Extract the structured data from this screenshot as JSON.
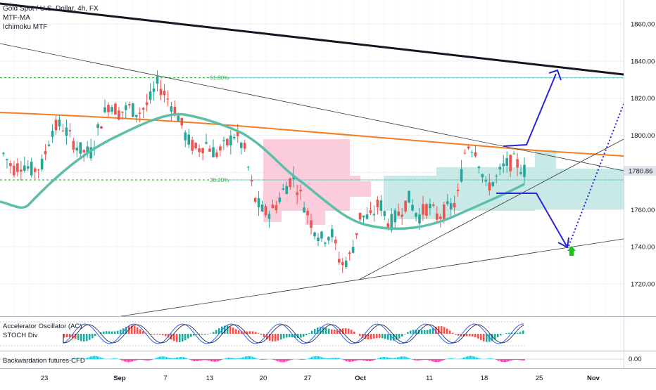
{
  "header": {
    "symbol_line": "Gold Spot / U.S. Dollar, 4h, FX",
    "indicators": [
      "MTF-MA",
      "Ichimoku MTF"
    ]
  },
  "panes": {
    "accelerator_label": "Accelerator Oscillator (AC)",
    "stoch_label": "STOCH Div",
    "backwardation_label": "Backwardation futures-CFD",
    "backwardation_axis_value": "0.00"
  },
  "fib_labels": [
    "61.80%",
    "38.20%"
  ],
  "price_tag": "1780.86",
  "colors": {
    "up_candle": "#26a69a",
    "down_candle": "#ef5350",
    "ma_teal": "#5dbfa8",
    "ma_orange": "#f57c20",
    "trendline_black": "#131722",
    "fib_green": "#4caf50",
    "fib_cyan": "#7fd0d8",
    "projection_blue": "#2a24d8",
    "pink_zone": "#f8bbd0",
    "teal_zone": "#b2dfdb",
    "target_arrow": "#19c319"
  },
  "chart_data": {
    "type": "candlestick",
    "ylim": [
      1705,
      1872
    ],
    "price_ticks": [
      1720,
      1740,
      1760,
      1780,
      1800,
      1820,
      1840,
      1860
    ],
    "x_ticks": [
      "23",
      "Sep",
      "7",
      "13",
      "20",
      "27",
      "Oct",
      "11",
      "18",
      "25",
      "Nov"
    ],
    "last_price": 1780.86,
    "fib_levels": [
      {
        "label": "61.80%",
        "price": 1831
      },
      {
        "label": "38.20%",
        "price": 1776
      }
    ],
    "candles_sampled": [
      [
        1788,
        1793,
        1782,
        1790
      ],
      [
        1790,
        1792,
        1780,
        1782
      ],
      [
        1782,
        1788,
        1776,
        1785
      ],
      [
        1785,
        1790,
        1779,
        1781
      ],
      [
        1781,
        1787,
        1775,
        1784
      ],
      [
        1784,
        1806,
        1782,
        1803
      ],
      [
        1803,
        1810,
        1797,
        1806
      ],
      [
        1806,
        1808,
        1795,
        1798
      ],
      [
        1798,
        1802,
        1786,
        1792
      ],
      [
        1792,
        1797,
        1780,
        1790
      ],
      [
        1790,
        1812,
        1789,
        1806
      ],
      [
        1806,
        1822,
        1804,
        1818
      ],
      [
        1818,
        1824,
        1809,
        1812
      ],
      [
        1812,
        1818,
        1806,
        1815
      ],
      [
        1815,
        1822,
        1808,
        1812
      ],
      [
        1812,
        1820,
        1806,
        1817
      ],
      [
        1817,
        1832,
        1814,
        1828
      ],
      [
        1828,
        1830,
        1816,
        1820
      ],
      [
        1820,
        1824,
        1808,
        1812
      ],
      [
        1812,
        1815,
        1796,
        1798
      ],
      [
        1798,
        1804,
        1786,
        1792
      ],
      [
        1792,
        1800,
        1786,
        1796
      ],
      [
        1796,
        1802,
        1788,
        1790
      ],
      [
        1790,
        1798,
        1784,
        1794
      ],
      [
        1794,
        1806,
        1790,
        1801
      ],
      [
        1801,
        1804,
        1789,
        1792
      ],
      [
        1792,
        1795,
        1762,
        1766
      ],
      [
        1766,
        1772,
        1752,
        1758
      ],
      [
        1758,
        1766,
        1744,
        1760
      ],
      [
        1760,
        1773,
        1755,
        1770
      ],
      [
        1770,
        1781,
        1766,
        1778
      ],
      [
        1778,
        1782,
        1760,
        1765
      ],
      [
        1765,
        1770,
        1750,
        1752
      ],
      [
        1752,
        1760,
        1738,
        1744
      ],
      [
        1744,
        1752,
        1736,
        1748
      ],
      [
        1748,
        1753,
        1726,
        1730
      ],
      [
        1730,
        1738,
        1722,
        1735
      ],
      [
        1735,
        1760,
        1733,
        1757
      ],
      [
        1757,
        1764,
        1750,
        1755
      ],
      [
        1755,
        1768,
        1749,
        1764
      ],
      [
        1764,
        1768,
        1748,
        1752
      ],
      [
        1752,
        1762,
        1747,
        1758
      ],
      [
        1758,
        1770,
        1756,
        1766
      ],
      [
        1766,
        1769,
        1752,
        1756
      ],
      [
        1756,
        1765,
        1750,
        1762
      ],
      [
        1762,
        1767,
        1752,
        1756
      ],
      [
        1756,
        1762,
        1749,
        1760
      ],
      [
        1760,
        1766,
        1754,
        1764
      ],
      [
        1764,
        1799,
        1762,
        1796
      ],
      [
        1796,
        1799,
        1786,
        1792
      ],
      [
        1792,
        1794,
        1768,
        1772
      ],
      [
        1772,
        1778,
        1766,
        1776
      ],
      [
        1776,
        1788,
        1772,
        1784
      ],
      [
        1784,
        1790,
        1778,
        1786
      ],
      [
        1786,
        1788,
        1776,
        1781
      ]
    ]
  }
}
